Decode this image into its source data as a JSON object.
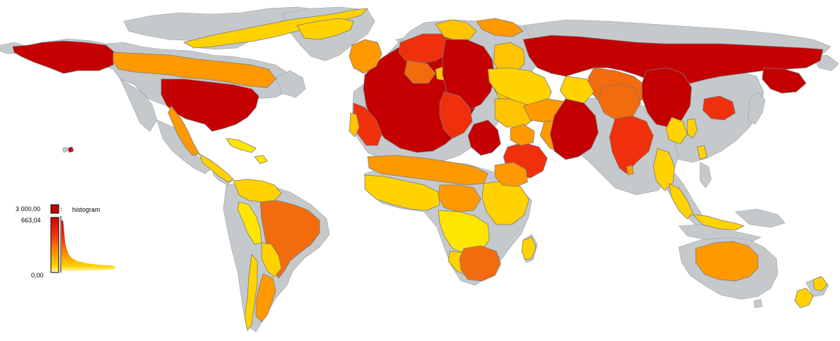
{
  "legend": {
    "title": "histogram",
    "max_label": "3 000,00",
    "break_label": "663,04",
    "min_label": "0,00",
    "colors": {
      "top_box": "#c50000",
      "gradient_high": "#d40000",
      "gradient_mid_high": "#f03010",
      "gradient_mid": "#ff8a00",
      "gradient_low": "#ffd200",
      "gradient_lowest": "#fff8b0"
    }
  },
  "palette": {
    "no_data": "#c6c9cc",
    "class_very_high": "#c50000",
    "class_high": "#f0300c",
    "class_medium_high": "#f26c0e",
    "class_medium": "#ff9900",
    "class_low": "#ffc400",
    "class_very_low": "#fff000"
  }
}
